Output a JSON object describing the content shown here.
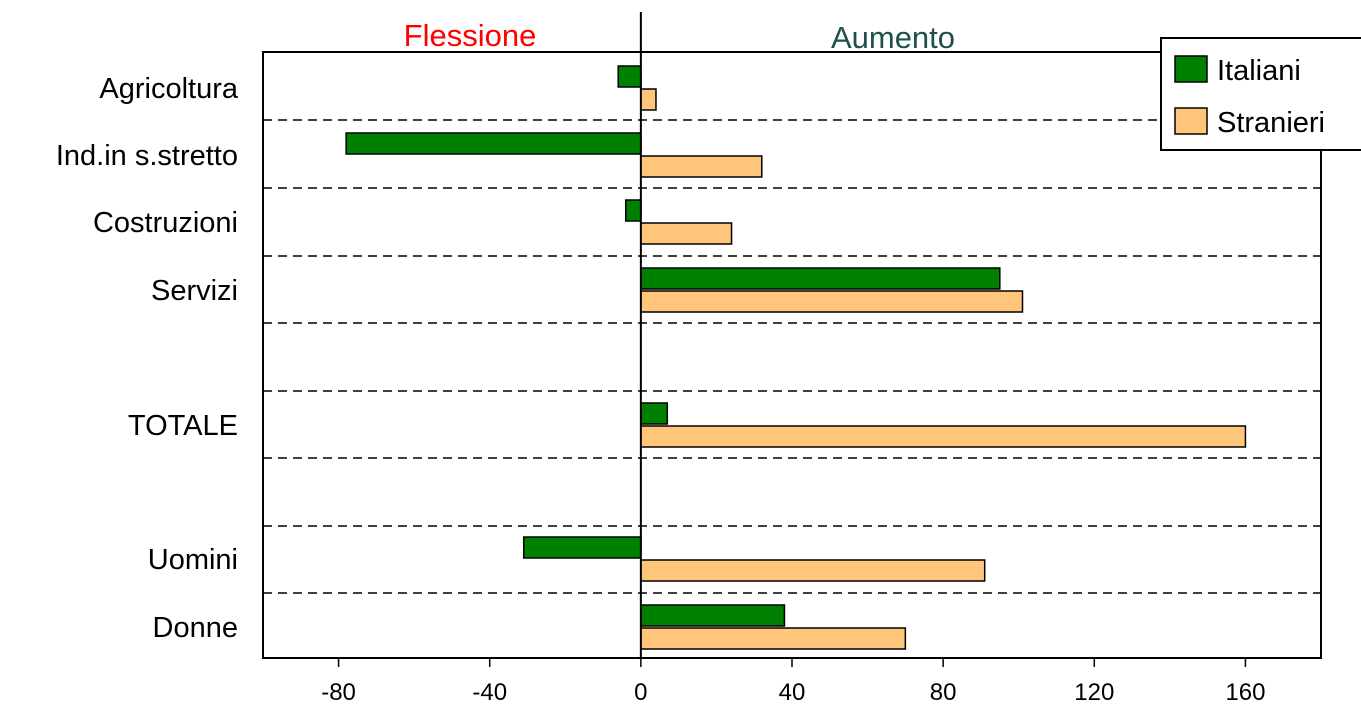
{
  "chart_data": {
    "type": "bar",
    "orientation": "horizontal",
    "header_left": "Flessione",
    "header_right": "Aumento",
    "categories": [
      "Agricoltura",
      "Ind.in s.stretto",
      "Costruzioni",
      "Servizi",
      "TOTALE",
      "Uomini",
      "Donne"
    ],
    "series": [
      {
        "name": "Italiani",
        "color": "#008000",
        "values": [
          -6,
          -78,
          -4,
          95,
          7,
          -31,
          38
        ]
      },
      {
        "name": "Stranieri",
        "color": "#FFC57A",
        "values": [
          4,
          32,
          24,
          101,
          160,
          91,
          70
        ]
      }
    ],
    "xlim": [
      -100,
      180
    ],
    "xticks": [
      -80,
      -40,
      0,
      40,
      80,
      120,
      160
    ],
    "xtick_labels": [
      "-80",
      "-40",
      "0",
      "40",
      "80",
      "120",
      "160"
    ],
    "grid": "dashed horizontal separators between categories",
    "legend": "top-right",
    "header_colors": {
      "left": "#FF0000",
      "right": "#1F4F4F"
    }
  }
}
